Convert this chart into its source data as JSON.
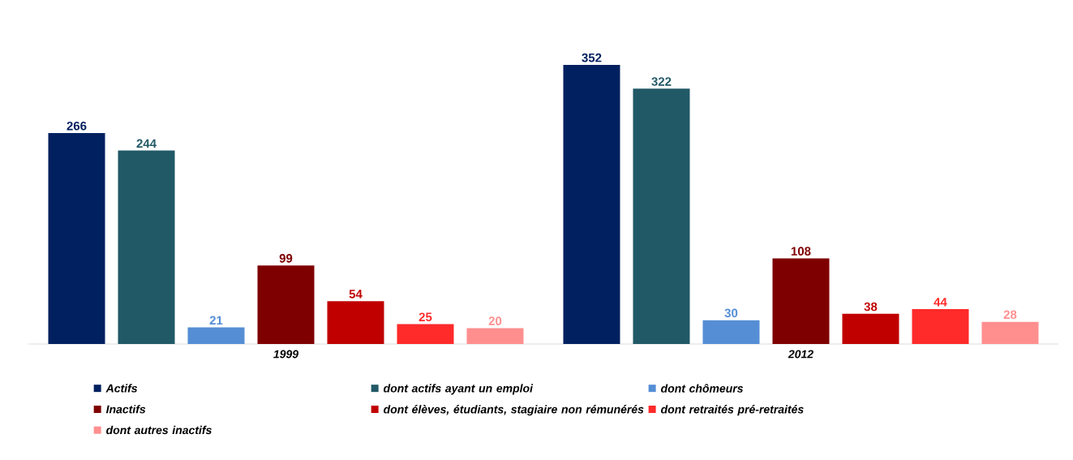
{
  "chart_data": {
    "type": "bar",
    "categories": [
      "1999",
      "2012"
    ],
    "data_labels": true,
    "legend": "bottom",
    "series": [
      {
        "name": "Actifs",
        "color": "#002060",
        "values": [
          266,
          352
        ]
      },
      {
        "name": "dont actifs ayant un emploi",
        "color": "#215967",
        "values": [
          244,
          322
        ]
      },
      {
        "name": "dont chômeurs",
        "color": "#558ed5",
        "values": [
          21,
          30
        ]
      },
      {
        "name": "Inactifs",
        "color": "#7f0000",
        "values": [
          99,
          108
        ]
      },
      {
        "name": "dont élèves, étudiants, stagiaire non rémunérés",
        "color": "#c00000",
        "values": [
          54,
          38
        ]
      },
      {
        "name": "dont retraités pré-retraités",
        "color": "#ff2a2a",
        "values": [
          25,
          44
        ]
      },
      {
        "name": "dont autres inactifs",
        "color": "#ff8f8f",
        "values": [
          20,
          28
        ]
      }
    ]
  }
}
